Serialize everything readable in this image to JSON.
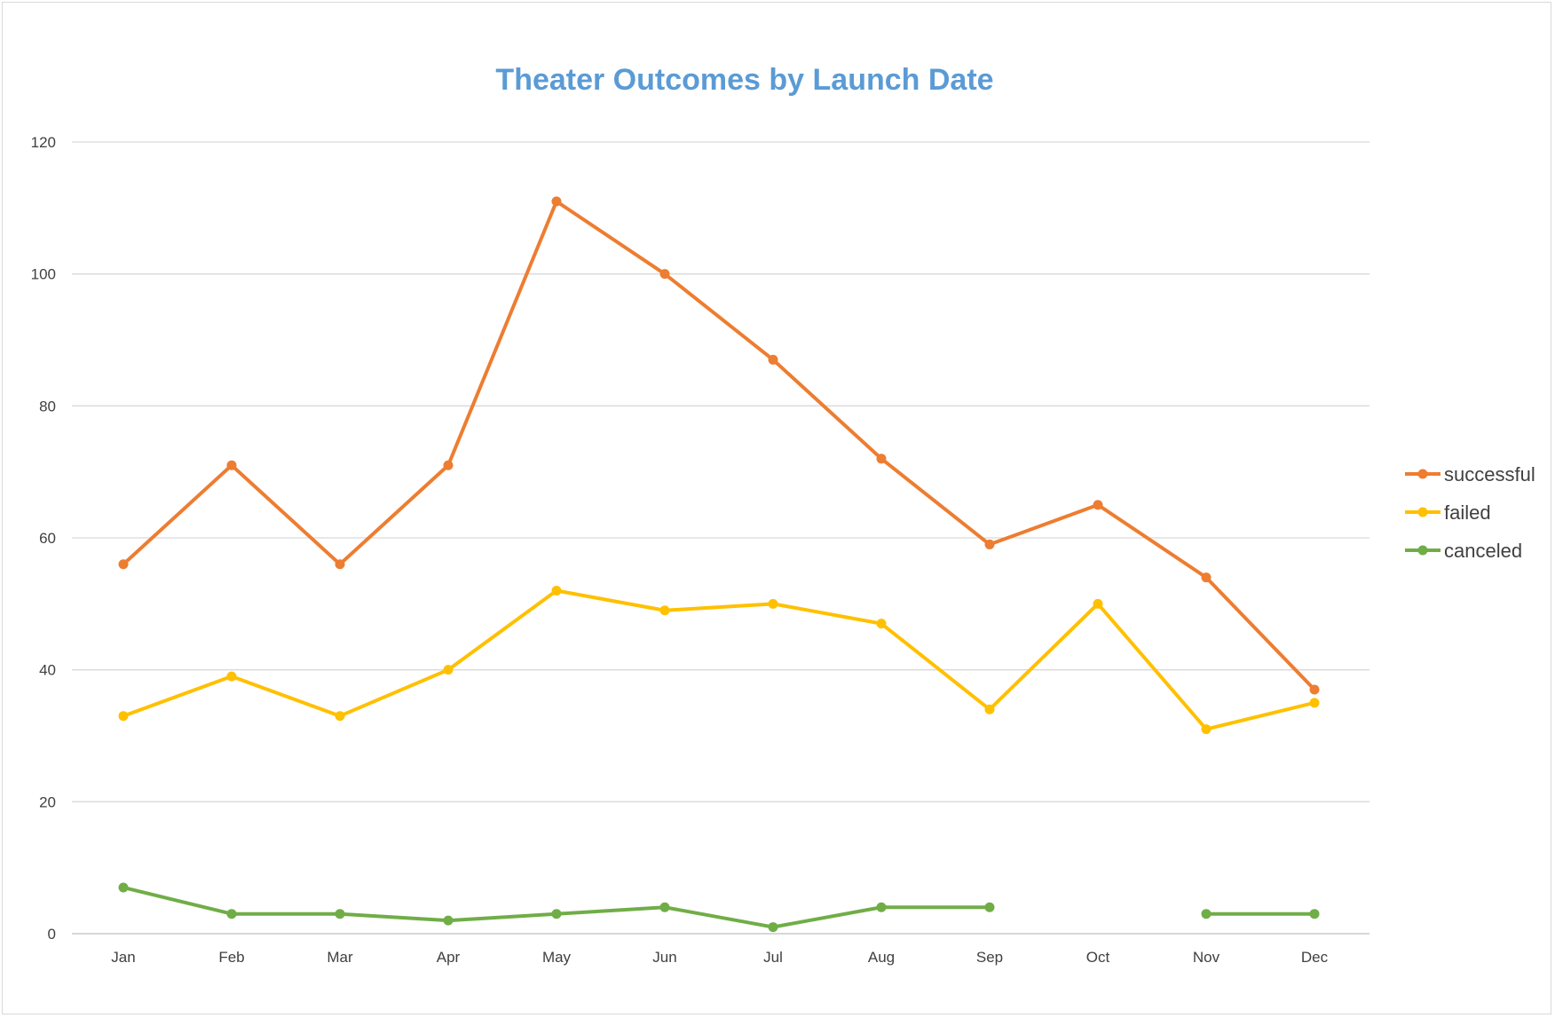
{
  "chart_data": {
    "type": "line",
    "title": "Theater Outcomes by Launch Date",
    "xlabel": "",
    "ylabel": "",
    "categories": [
      "Jan",
      "Feb",
      "Mar",
      "Apr",
      "May",
      "Jun",
      "Jul",
      "Aug",
      "Sep",
      "Oct",
      "Nov",
      "Dec"
    ],
    "ylim": [
      0,
      120
    ],
    "yticks": [
      0,
      20,
      40,
      60,
      80,
      100,
      120
    ],
    "ytick_labels": [
      "0",
      "20",
      "40",
      "60",
      "80",
      "100",
      "120"
    ],
    "grid": true,
    "legend_position": "right",
    "series": [
      {
        "name": "successful",
        "color": "#ed7d31",
        "values": [
          56,
          71,
          56,
          71,
          111,
          100,
          87,
          72,
          59,
          65,
          54,
          37
        ]
      },
      {
        "name": "failed",
        "color": "#ffc000",
        "values": [
          33,
          39,
          33,
          40,
          52,
          49,
          50,
          47,
          34,
          50,
          31,
          35
        ]
      },
      {
        "name": "canceled",
        "color": "#70ad47",
        "values": [
          7,
          3,
          3,
          2,
          3,
          4,
          1,
          4,
          4,
          null,
          3,
          3
        ]
      }
    ]
  }
}
